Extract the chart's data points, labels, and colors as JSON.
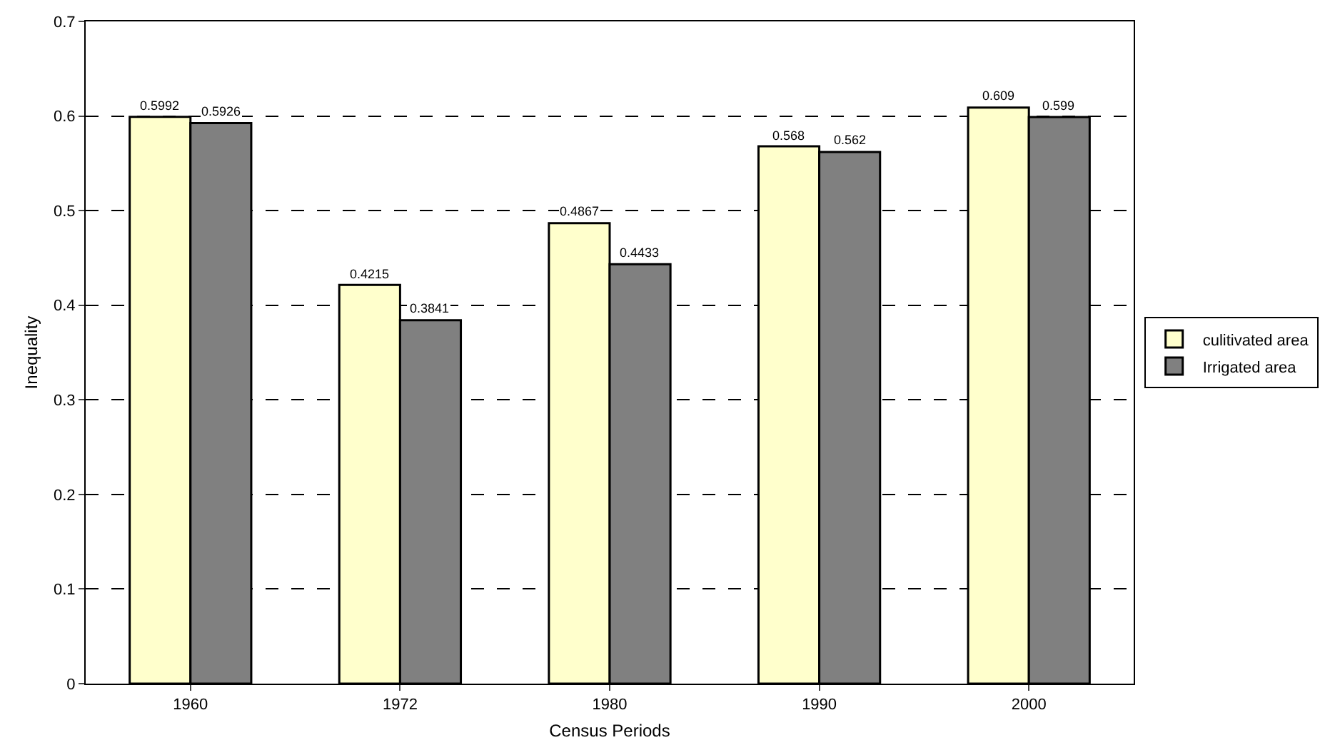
{
  "chart_data": {
    "type": "bar",
    "xlabel": "Census Periods",
    "ylabel": "Inequality",
    "categories": [
      "1960",
      "1972",
      "1980",
      "1990",
      "2000"
    ],
    "series": [
      {
        "name": "culitivated area",
        "color": "#ffffcc",
        "values": [
          0.5992,
          0.4215,
          0.4867,
          0.568,
          0.609
        ]
      },
      {
        "name": "Irrigated area",
        "color": "#808080",
        "values": [
          0.5926,
          0.3841,
          0.4433,
          0.562,
          0.599
        ]
      }
    ],
    "ylim": [
      0,
      0.7
    ],
    "yticks": [
      0,
      0.1,
      0.2,
      0.3,
      0.4,
      0.5,
      0.6,
      0.7
    ],
    "grid": "y",
    "legend": "right",
    "data_labels": true
  }
}
